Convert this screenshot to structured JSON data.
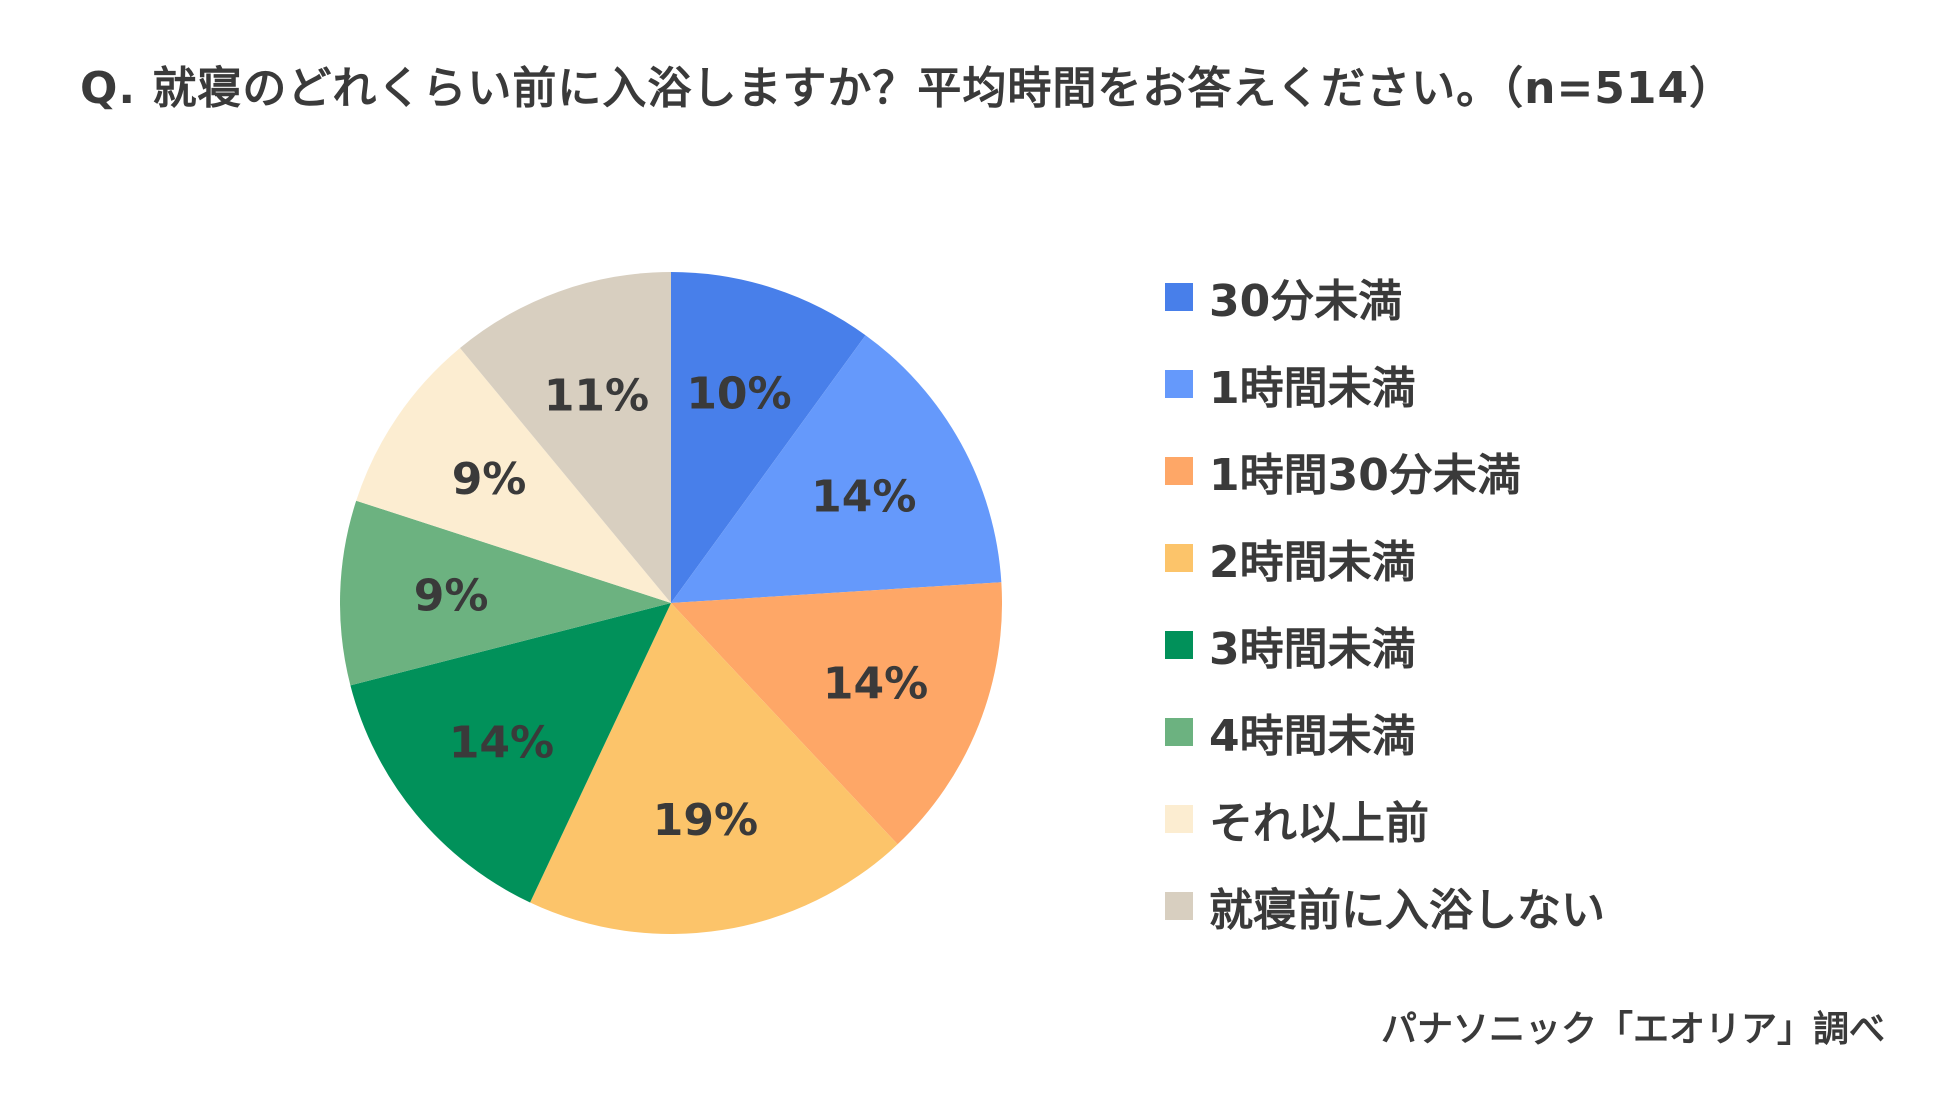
{
  "chart_data": {
    "type": "pie",
    "title": "Q. 就寝のどれくらい前に入浴しますか？平均時間をお答えください。（n=514）",
    "categories": [
      "30分未満",
      "1時間未満",
      "1時間30分未満",
      "2時間未満",
      "3時間未満",
      "4時間未満",
      "それ以上前",
      "就寝前に入浴しない"
    ],
    "values": [
      10,
      14,
      14,
      19,
      14,
      9,
      9,
      11
    ],
    "value_labels": [
      "10%",
      "14%",
      "14%",
      "19%",
      "14%",
      "9%",
      "9%",
      "11%"
    ],
    "colors": [
      "#487FEA",
      "#6599FB",
      "#FEA767",
      "#FCC46A",
      "#01915A",
      "#6CB280",
      "#FCEDD1",
      "#D8CFC0"
    ],
    "legend": "right",
    "start": "top, clockwise"
  },
  "source": "パナソニック「エオリア」調べ"
}
